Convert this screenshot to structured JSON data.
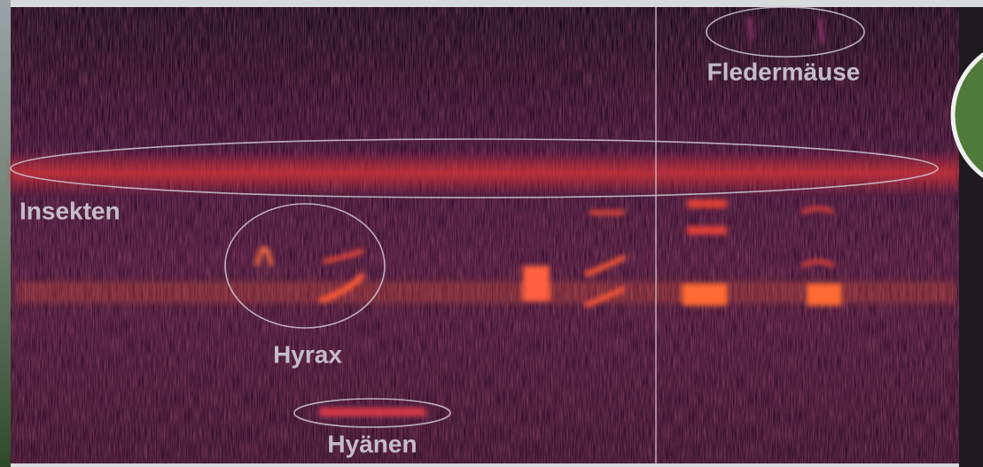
{
  "labels": {
    "insects": "Insekten",
    "hyrax": "Hyrax",
    "hyenas": "Hyänen",
    "bats": "Fledermäuse"
  }
}
